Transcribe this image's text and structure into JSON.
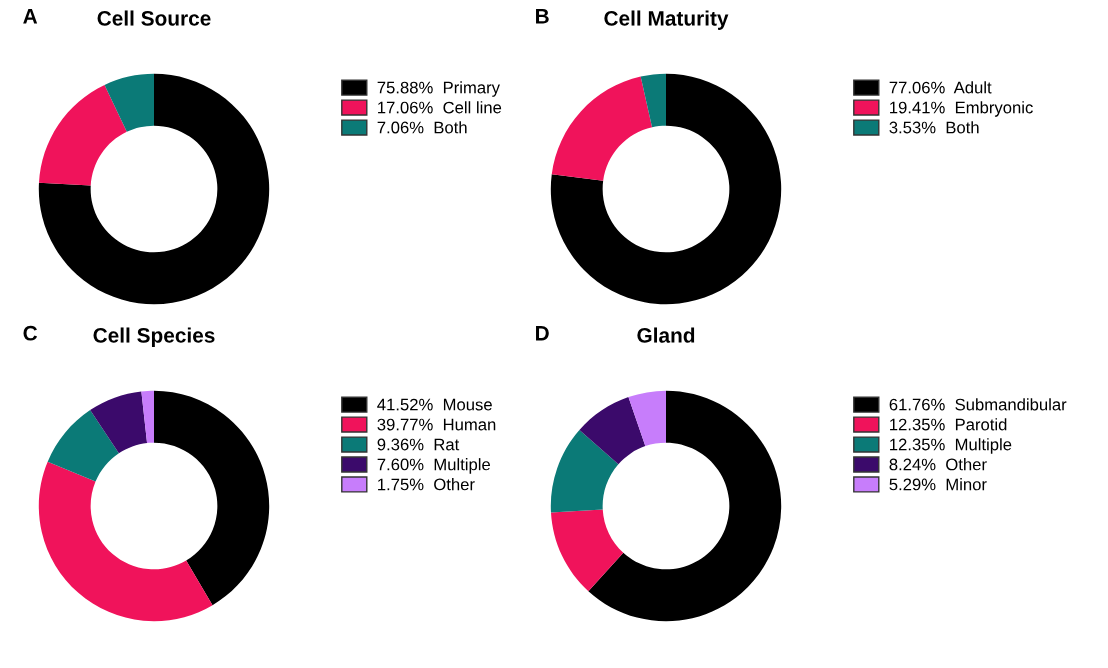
{
  "chart_data": [
    {
      "type": "donut",
      "title": "Cell Source",
      "annotations": [
        "A"
      ],
      "legend": "right",
      "categories": [
        "Primary",
        "Cell line",
        "Both"
      ],
      "values": [
        75.88,
        17.06,
        7.06
      ],
      "value_labels": [
        "75.88%",
        "17.06%",
        "7.06%"
      ],
      "colors": [
        "#000000",
        "#f0135b",
        "#0b7a77"
      ]
    },
    {
      "type": "donut",
      "title": "Cell Maturity",
      "annotations": [
        "B"
      ],
      "legend": "right",
      "categories": [
        "Adult",
        "Embryonic",
        "Both"
      ],
      "values": [
        77.06,
        19.41,
        3.53
      ],
      "value_labels": [
        "77.06%",
        "19.41%",
        "3.53%"
      ],
      "colors": [
        "#000000",
        "#f0135b",
        "#0b7a77"
      ]
    },
    {
      "type": "donut",
      "title": "Cell Species",
      "annotations": [
        "C"
      ],
      "legend": "right",
      "categories": [
        "Mouse",
        "Human",
        "Rat",
        "Multiple",
        "Other"
      ],
      "values": [
        41.52,
        39.77,
        9.36,
        7.6,
        1.75
      ],
      "value_labels": [
        "41.52%",
        "39.77%",
        "9.36%",
        "7.60%",
        "1.75%"
      ],
      "colors": [
        "#000000",
        "#f0135b",
        "#0b7a77",
        "#3b0a6b",
        "#c77dfb"
      ]
    },
    {
      "type": "donut",
      "title": "Gland",
      "annotations": [
        "D"
      ],
      "legend": "right",
      "categories": [
        "Submandibular",
        "Parotid",
        "Multiple",
        "Other",
        "Minor"
      ],
      "values": [
        61.76,
        12.35,
        12.35,
        8.24,
        5.29
      ],
      "value_labels": [
        "61.76%",
        "12.35%",
        "12.35%",
        "8.24%",
        "5.29%"
      ],
      "colors": [
        "#000000",
        "#f0135b",
        "#0b7a77",
        "#3b0a6b",
        "#c77dfb"
      ]
    }
  ]
}
